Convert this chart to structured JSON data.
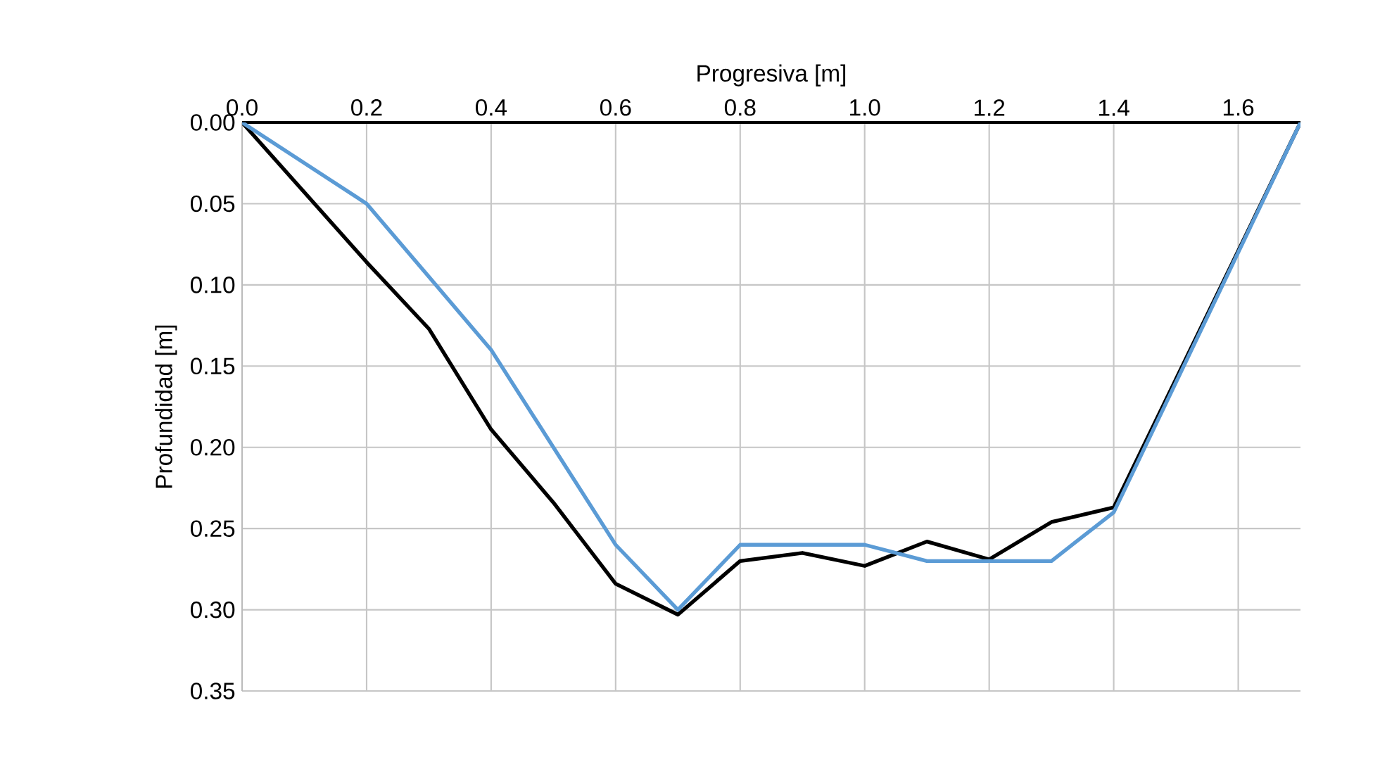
{
  "chart_data": {
    "type": "line",
    "xlabel": "Progresiva [m]",
    "ylabel": "Profundidad [m]",
    "xlim": [
      0,
      1.7
    ],
    "xticks": [
      {
        "value": 0,
        "label": "0.0"
      },
      {
        "value": 0.2,
        "label": "0.2"
      },
      {
        "value": 0.4,
        "label": "0.4"
      },
      {
        "value": 0.6,
        "label": "0.6"
      },
      {
        "value": 0.8,
        "label": "0.8"
      },
      {
        "value": 1.0,
        "label": "1.0"
      },
      {
        "value": 1.2,
        "label": "1.2"
      },
      {
        "value": 1.4,
        "label": "1.4"
      },
      {
        "value": 1.6,
        "label": "1.6"
      }
    ],
    "ylim": [
      0.35,
      0
    ],
    "yticks": [
      {
        "value": 0,
        "label": "0.00"
      },
      {
        "value": 0.05,
        "label": "0.05"
      },
      {
        "value": 0.1,
        "label": "0.10"
      },
      {
        "value": 0.15,
        "label": "0.15"
      },
      {
        "value": 0.2,
        "label": "0.20"
      },
      {
        "value": 0.25,
        "label": "0.25"
      },
      {
        "value": 0.3,
        "label": "0.30"
      },
      {
        "value": 0.35,
        "label": "0.35"
      }
    ],
    "grid": true,
    "marker": "none",
    "line_style": "solid",
    "series": [
      {
        "color": "#000000",
        "x": [
          0,
          0.2,
          0.3,
          0.4,
          0.5,
          0.6,
          0.7,
          0.8,
          0.9,
          1.0,
          1.1,
          1.2,
          1.3,
          1.4,
          1.7
        ],
        "values": [
          0,
          0.086,
          0.127,
          0.189,
          0.234,
          0.284,
          0.303,
          0.27,
          0.265,
          0.273,
          0.258,
          0.269,
          0.246,
          0.237,
          0
        ]
      },
      {
        "color": "#5b9bd5",
        "x": [
          0,
          0.2,
          0.3,
          0.4,
          0.5,
          0.6,
          0.7,
          0.8,
          0.9,
          1.0,
          1.1,
          1.2,
          1.3,
          1.4,
          1.7
        ],
        "values": [
          0,
          0.05,
          0.095,
          0.14,
          0.2,
          0.26,
          0.3,
          0.26,
          0.26,
          0.26,
          0.27,
          0.27,
          0.27,
          0.24,
          0
        ]
      }
    ]
  }
}
